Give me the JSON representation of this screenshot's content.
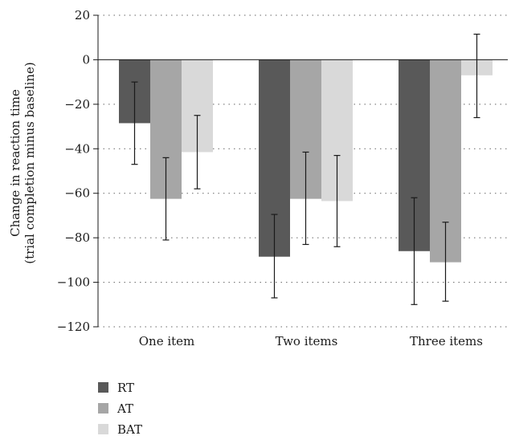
{
  "chart_data": {
    "type": "bar",
    "title": "",
    "xlabel": "",
    "ylabel_lines": [
      "Change in reaction time",
      "(trial completion minus baseline)"
    ],
    "ylim": [
      -120,
      20
    ],
    "yticks": [
      20,
      0,
      -20,
      -40,
      -60,
      -80,
      -100,
      -120
    ],
    "ytick_labels": [
      "20",
      "0",
      "−20",
      "−40",
      "−60",
      "−80",
      "−100",
      "−120"
    ],
    "grid": true,
    "legend_position": "bottom-left",
    "categories": [
      "One item",
      "Two items",
      "Three items"
    ],
    "series": [
      {
        "name": "RT",
        "color": "#595959",
        "values": [
          -28.5,
          -88.5,
          -86.0
        ],
        "err_low": [
          -47,
          -107,
          -110
        ],
        "err_high": [
          -10,
          -69.5,
          -62
        ]
      },
      {
        "name": "AT",
        "color": "#a6a6a6",
        "values": [
          -62.5,
          -62.5,
          -91.0
        ],
        "err_low": [
          -81,
          -83,
          -108.5
        ],
        "err_high": [
          -44,
          -41.5,
          -73
        ]
      },
      {
        "name": "BAT",
        "color": "#d9d9d9",
        "values": [
          -41.5,
          -63.5,
          -7.0
        ],
        "err_low": [
          -58,
          -84,
          -26
        ],
        "err_high": [
          -25,
          -43,
          11.5
        ]
      }
    ]
  }
}
